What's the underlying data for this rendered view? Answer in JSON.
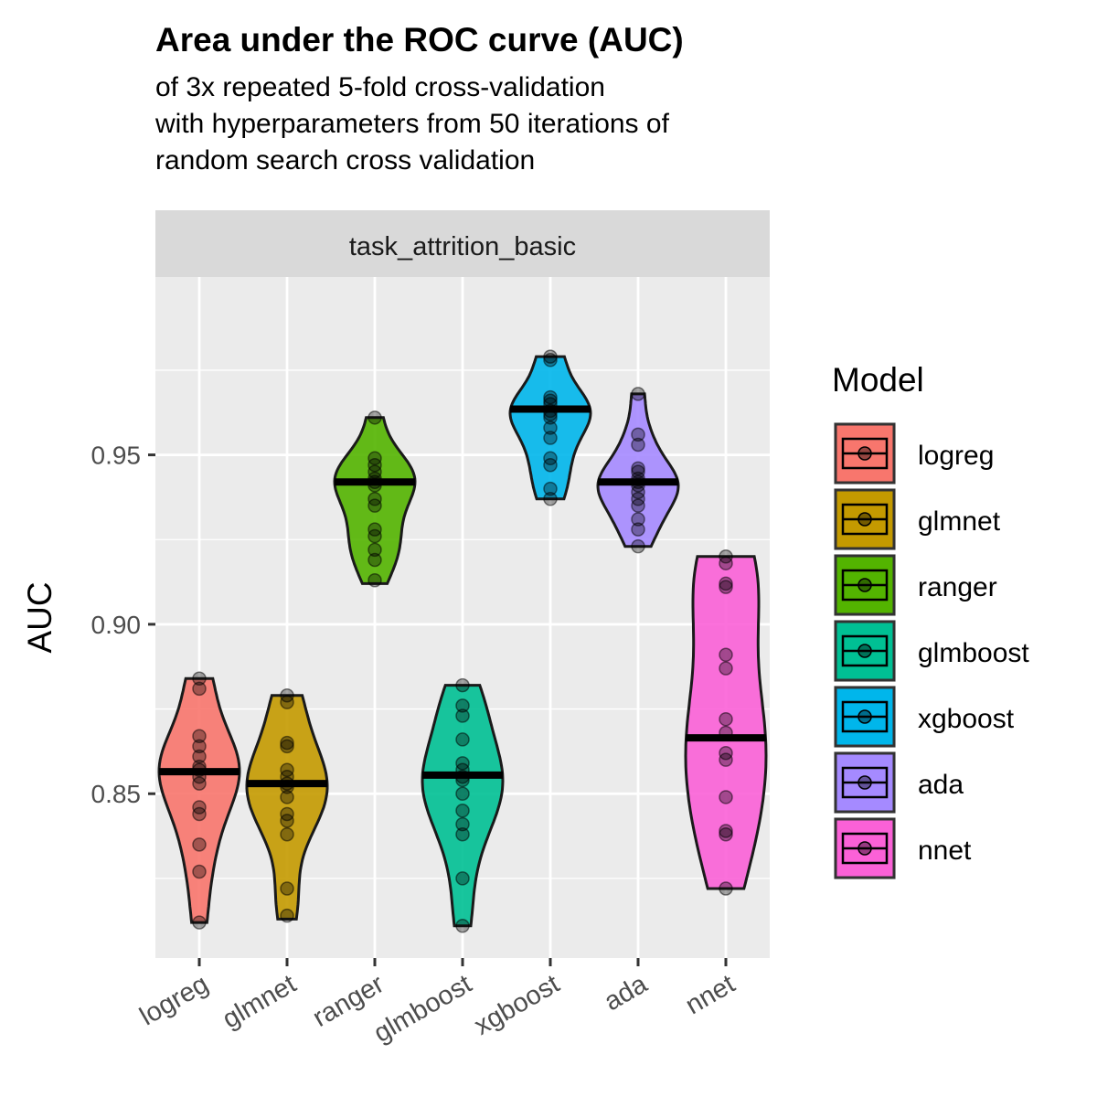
{
  "title": "Area under the ROC curve (AUC)",
  "subtitle_lines": [
    "of 3x repeated 5-fold cross-validation",
    "with hyperparameters from 50 iterations of",
    "random search cross validation"
  ],
  "chart_data": {
    "type": "violin",
    "facet_label": "task_attrition_basic",
    "xlabel": "",
    "ylabel": "AUC",
    "ylim": [
      0.8015,
      1.0025
    ],
    "y_ticks": [
      0.85,
      0.9,
      0.95
    ],
    "y_tick_labels": [
      "0.85",
      "0.90",
      "0.95"
    ],
    "y_minor_ticks": [
      0.825,
      0.875,
      0.925,
      0.975
    ],
    "grid": true,
    "legend_title": "Model",
    "legend_position": "right",
    "categories": [
      "logreg",
      "glmnet",
      "ranger",
      "glmboost",
      "xgboost",
      "ada",
      "nnet"
    ],
    "series": [
      {
        "name": "logreg",
        "color": "#F8766D",
        "mean": 0.8565,
        "min": 0.812,
        "max": 0.884,
        "points": [
          0.884,
          0.881,
          0.867,
          0.864,
          0.861,
          0.858,
          0.857,
          0.855,
          0.853,
          0.846,
          0.844,
          0.835,
          0.827,
          0.812
        ]
      },
      {
        "name": "glmnet",
        "color": "#C49A00",
        "mean": 0.853,
        "min": 0.813,
        "max": 0.879,
        "points": [
          0.879,
          0.877,
          0.865,
          0.864,
          0.857,
          0.855,
          0.853,
          0.852,
          0.849,
          0.844,
          0.842,
          0.838,
          0.822,
          0.814
        ]
      },
      {
        "name": "ranger",
        "color": "#53B400",
        "mean": 0.942,
        "min": 0.912,
        "max": 0.961,
        "points": [
          0.961,
          0.949,
          0.947,
          0.945,
          0.943,
          0.942,
          0.941,
          0.937,
          0.935,
          0.928,
          0.926,
          0.922,
          0.919,
          0.913
        ]
      },
      {
        "name": "glmboost",
        "color": "#00C094",
        "mean": 0.8555,
        "min": 0.811,
        "max": 0.882,
        "points": [
          0.882,
          0.876,
          0.873,
          0.866,
          0.859,
          0.857,
          0.855,
          0.854,
          0.85,
          0.845,
          0.841,
          0.838,
          0.825,
          0.811
        ]
      },
      {
        "name": "xgboost",
        "color": "#00B6EB",
        "mean": 0.9635,
        "min": 0.937,
        "max": 0.979,
        "points": [
          0.979,
          0.978,
          0.967,
          0.966,
          0.965,
          0.963,
          0.962,
          0.961,
          0.958,
          0.955,
          0.949,
          0.947,
          0.94,
          0.937
        ]
      },
      {
        "name": "ada",
        "color": "#A58AFF",
        "mean": 0.942,
        "min": 0.923,
        "max": 0.968,
        "points": [
          0.968,
          0.956,
          0.953,
          0.946,
          0.945,
          0.943,
          0.942,
          0.941,
          0.939,
          0.937,
          0.935,
          0.931,
          0.928,
          0.923
        ]
      },
      {
        "name": "nnet",
        "color": "#FB61D7",
        "mean": 0.8665,
        "min": 0.822,
        "max": 0.92,
        "points": [
          0.92,
          0.918,
          0.912,
          0.911,
          0.891,
          0.887,
          0.872,
          0.868,
          0.862,
          0.86,
          0.849,
          0.839,
          0.838,
          0.822
        ]
      }
    ]
  }
}
